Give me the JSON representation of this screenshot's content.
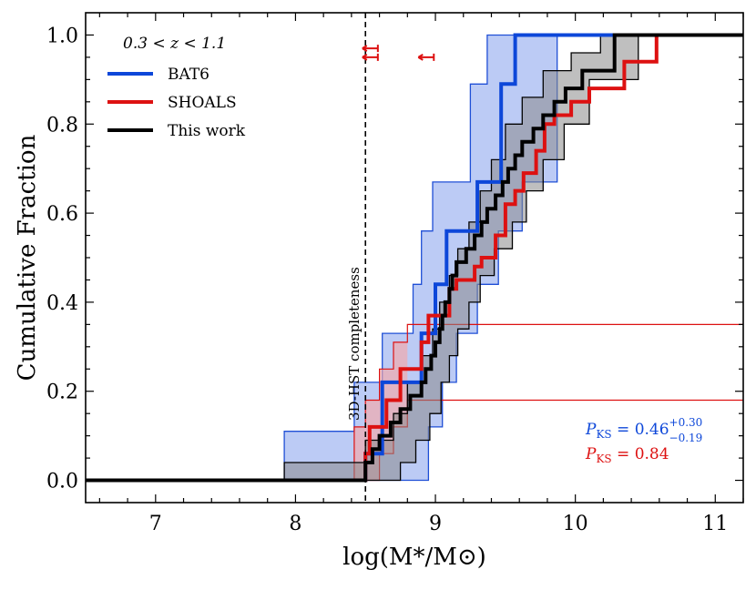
{
  "chart_data": {
    "type": "line",
    "subtype": "empirical-cumulative-distribution (step)",
    "title": "",
    "xlabel": "log(M*/M⊙)",
    "ylabel": "Cumulative Fraction",
    "xlim": [
      6.5,
      11.2
    ],
    "ylim": [
      -0.05,
      1.05
    ],
    "x_ticks": [
      7,
      8,
      9,
      10,
      11
    ],
    "x_tick_labels": [
      "7",
      "8",
      "9",
      "10",
      "11"
    ],
    "y_ticks": [
      0.0,
      0.2,
      0.4,
      0.6,
      0.8,
      1.0
    ],
    "y_tick_labels": [
      "0.0",
      "0.2",
      "0.4",
      "0.6",
      "0.8",
      "1.0"
    ],
    "legend": {
      "title": "0.3 < z < 1.1",
      "placement": "top-left",
      "entries": [
        "BAT6",
        "SHOALS",
        "This work"
      ]
    },
    "colors": {
      "BAT6": "#0d47d9",
      "SHOALS": "#dd1111",
      "This work": "#000000",
      "BAT6_band": "#8fa8ee",
      "BAT6_band_edge": "#1f4fd6",
      "SHOALS_band": "#f4a7a7",
      "ThisWork_band": "#8a8a8a"
    },
    "completeness_limit": {
      "x": 8.5,
      "label": "3D-HST completeness"
    },
    "series": [
      {
        "name": "This work",
        "x": [
          8.5,
          8.55,
          8.6,
          8.68,
          8.75,
          8.82,
          8.9,
          8.93,
          8.97,
          9.0,
          9.03,
          9.05,
          9.07,
          9.1,
          9.12,
          9.15,
          9.22,
          9.28,
          9.33,
          9.37,
          9.43,
          9.48,
          9.52,
          9.57,
          9.62,
          9.7,
          9.77,
          9.85,
          9.93,
          10.05,
          10.28
        ],
        "y": [
          0.04,
          0.07,
          0.1,
          0.13,
          0.16,
          0.19,
          0.22,
          0.25,
          0.28,
          0.31,
          0.34,
          0.37,
          0.4,
          0.43,
          0.46,
          0.49,
          0.52,
          0.55,
          0.58,
          0.61,
          0.64,
          0.67,
          0.7,
          0.73,
          0.76,
          0.79,
          0.82,
          0.85,
          0.88,
          0.92,
          1.0
        ]
      },
      {
        "name": "BAT6",
        "x": [
          8.5,
          8.62,
          8.9,
          9.0,
          9.08,
          9.3,
          9.47,
          9.57
        ],
        "y": [
          0.06,
          0.22,
          0.33,
          0.44,
          0.56,
          0.67,
          0.89,
          1.0
        ]
      },
      {
        "name": "SHOALS",
        "x": [
          8.5,
          8.53,
          8.65,
          8.75,
          8.9,
          8.95,
          9.1,
          9.15,
          9.28,
          9.33,
          9.43,
          9.5,
          9.57,
          9.63,
          9.72,
          9.78,
          9.85,
          9.97,
          10.1,
          10.35,
          10.58
        ],
        "y": [
          0.06,
          0.12,
          0.18,
          0.25,
          0.31,
          0.37,
          0.43,
          0.45,
          0.48,
          0.5,
          0.55,
          0.62,
          0.65,
          0.69,
          0.74,
          0.8,
          0.82,
          0.85,
          0.88,
          0.94,
          1.0
        ]
      }
    ],
    "bands": [
      {
        "name": "BAT6 range",
        "lower": {
          "x": [
            8.64,
            8.95,
            9.05,
            9.15,
            9.3,
            9.45,
            9.62,
            9.87
          ],
          "y": [
            0.0,
            0.12,
            0.22,
            0.33,
            0.44,
            0.56,
            0.67,
            1.0
          ]
        },
        "upper": {
          "x": [
            7.92,
            8.42,
            8.62,
            8.84,
            8.9,
            8.98,
            9.25,
            9.37
          ],
          "y": [
            0.11,
            0.22,
            0.33,
            0.44,
            0.56,
            0.67,
            0.89,
            1.0
          ]
        }
      },
      {
        "name": "SHOALS range",
        "lower": {
          "x": [
            8.52,
            8.6,
            8.7,
            8.8
          ],
          "y": [
            0.0,
            0.06,
            0.12,
            0.18
          ]
        },
        "upper": {
          "x": [
            8.42,
            8.5,
            8.6,
            8.7,
            8.8
          ],
          "y": [
            0.12,
            0.18,
            0.25,
            0.31,
            0.35
          ]
        }
      },
      {
        "name": "This work range",
        "lower": {
          "x": [
            8.58,
            8.75,
            8.86,
            8.96,
            9.04,
            9.1,
            9.16,
            9.24,
            9.32,
            9.42,
            9.55,
            9.65,
            9.77,
            9.92,
            10.1,
            10.45
          ],
          "y": [
            0.0,
            0.04,
            0.09,
            0.15,
            0.22,
            0.28,
            0.34,
            0.4,
            0.46,
            0.52,
            0.58,
            0.65,
            0.72,
            0.8,
            0.9,
            1.0
          ]
        },
        "upper": {
          "x": [
            7.92,
            8.5,
            8.7,
            8.8,
            8.9,
            8.98,
            9.03,
            9.1,
            9.16,
            9.24,
            9.32,
            9.4,
            9.5,
            9.62,
            9.77,
            9.97,
            10.18
          ],
          "y": [
            0.04,
            0.09,
            0.15,
            0.22,
            0.28,
            0.34,
            0.4,
            0.46,
            0.52,
            0.58,
            0.65,
            0.72,
            0.8,
            0.86,
            0.92,
            0.96,
            1.0
          ]
        }
      }
    ],
    "upper_limits": [
      {
        "x": 8.53,
        "y": 0.97
      },
      {
        "x": 8.53,
        "y": 0.95
      },
      {
        "x": 8.93,
        "y": 0.95
      }
    ],
    "annotations": [
      {
        "series": "BAT6",
        "text_prefix": "P",
        "subscript": "KS",
        "value": " = 0.46",
        "sup": "+0.30",
        "sub": "−0.19"
      },
      {
        "series": "SHOALS",
        "text_prefix": "P",
        "subscript": "KS",
        "value": " = 0.84"
      }
    ]
  }
}
